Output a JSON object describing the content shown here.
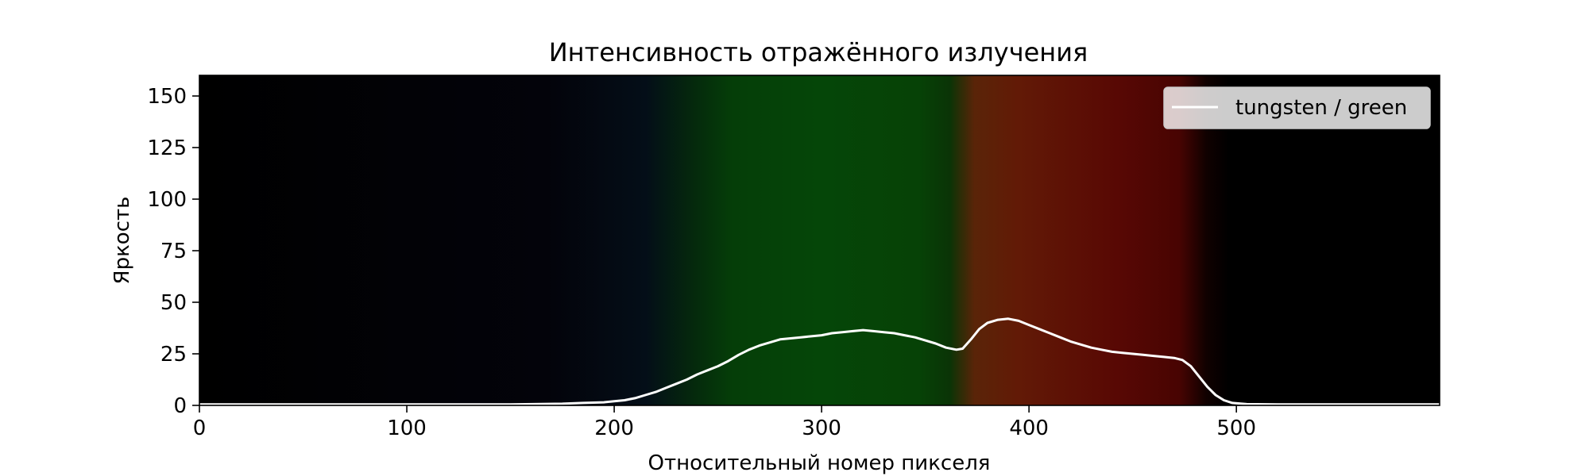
{
  "chart_data": {
    "type": "line",
    "title": "Интенсивность отражённого излучения",
    "xlabel": "Относительный номер пикселя",
    "ylabel": "Яркость",
    "xlim": [
      0,
      598
    ],
    "ylim": [
      0,
      160
    ],
    "xticks": [
      0,
      100,
      200,
      300,
      400,
      500
    ],
    "yticks": [
      0,
      25,
      50,
      75,
      100,
      125,
      150
    ],
    "grid": false,
    "legend_position": "top-right",
    "background": "spectrum image: black, faint blue near x≈220, green x≈250–365, orange/red x≈370–485, black beyond",
    "series": [
      {
        "name": "tungsten / green",
        "color": "#ffffff",
        "x": [
          0,
          150,
          175,
          185,
          195,
          200,
          205,
          210,
          215,
          220,
          225,
          230,
          235,
          240,
          245,
          250,
          255,
          260,
          265,
          270,
          275,
          280,
          285,
          290,
          295,
          300,
          305,
          310,
          315,
          320,
          325,
          330,
          335,
          340,
          345,
          350,
          355,
          360,
          365,
          368,
          372,
          376,
          380,
          385,
          390,
          395,
          400,
          405,
          410,
          415,
          420,
          425,
          430,
          435,
          440,
          445,
          450,
          455,
          460,
          465,
          470,
          474,
          478,
          482,
          486,
          490,
          494,
          498,
          505,
          520,
          560,
          598
        ],
        "y": [
          0.5,
          0.5,
          0.8,
          1.2,
          1.5,
          2,
          2.5,
          3.5,
          5,
          6.5,
          8.5,
          10.5,
          12.5,
          15,
          17,
          19,
          21.5,
          24.5,
          27,
          29,
          30.5,
          32,
          32.5,
          33,
          33.5,
          34,
          35,
          35.5,
          36,
          36.5,
          36,
          35.5,
          35,
          34,
          33,
          31.5,
          30,
          28,
          27,
          27.5,
          32,
          37,
          40,
          41.5,
          42,
          41,
          39,
          37,
          35,
          33,
          31,
          29.5,
          28,
          27,
          26,
          25.5,
          25,
          24.5,
          24,
          23.5,
          23,
          22,
          19,
          14,
          9,
          5,
          2.5,
          1.2,
          0.6,
          0.5,
          0.5,
          0.5
        ]
      }
    ]
  }
}
